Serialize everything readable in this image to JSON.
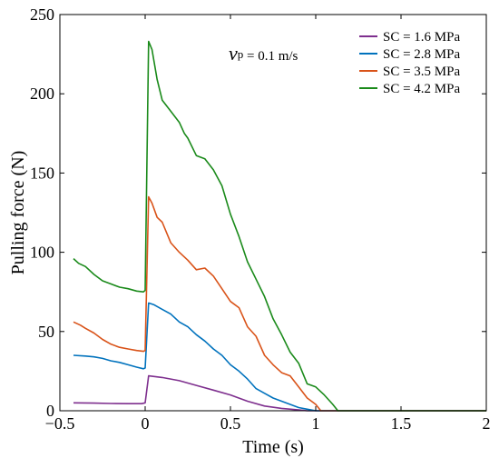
{
  "chart_data": {
    "type": "line",
    "title": "",
    "xlabel": "Time (s)",
    "ylabel": "Pulling force (N)",
    "xlim": [
      -0.5,
      2
    ],
    "ylim": [
      0,
      250
    ],
    "xticks": [
      -0.5,
      0,
      0.5,
      1,
      1.5,
      2
    ],
    "xtick_labels": [
      "−0.5",
      "0",
      "0.5",
      "1",
      "1.5",
      "2"
    ],
    "yticks": [
      0,
      50,
      100,
      150,
      200,
      250
    ],
    "ytick_labels": [
      "0",
      "50",
      "100",
      "150",
      "200",
      "250"
    ],
    "grid": false,
    "legend_position": "top-right",
    "annotation": {
      "symbol": "v",
      "subscript": "p",
      "text": " = 0.1 m/s"
    },
    "series": [
      {
        "name": "SC = 1.6 MPa",
        "color": "#7E2F8E",
        "x": [
          -0.42,
          -0.3,
          -0.2,
          -0.1,
          -0.02,
          0.0,
          0.02,
          0.1,
          0.2,
          0.3,
          0.4,
          0.5,
          0.6,
          0.7,
          0.8,
          0.9,
          0.95,
          2.0
        ],
        "y": [
          5,
          4.8,
          4.6,
          4.5,
          4.5,
          5,
          22,
          21,
          19,
          16,
          13,
          10,
          6,
          3,
          1.5,
          0.5,
          0,
          0
        ]
      },
      {
        "name": "SC = 2.8 MPa",
        "color": "#0072BD",
        "x": [
          -0.42,
          -0.35,
          -0.3,
          -0.25,
          -0.2,
          -0.15,
          -0.1,
          -0.05,
          -0.01,
          0.0,
          0.02,
          0.05,
          0.1,
          0.15,
          0.2,
          0.25,
          0.3,
          0.35,
          0.4,
          0.45,
          0.5,
          0.55,
          0.6,
          0.65,
          0.7,
          0.75,
          0.8,
          0.85,
          0.9,
          0.95,
          1.0,
          2.0
        ],
        "y": [
          35,
          34.5,
          34,
          33,
          31.5,
          30.5,
          29,
          27.5,
          26.5,
          27,
          68,
          67,
          64,
          61,
          56,
          53,
          48,
          44,
          39,
          35,
          29,
          25,
          20,
          14,
          11,
          8,
          6,
          4,
          2,
          1,
          0,
          0
        ]
      },
      {
        "name": "SC = 3.5 MPa",
        "color": "#D95319",
        "x": [
          -0.42,
          -0.38,
          -0.35,
          -0.3,
          -0.25,
          -0.2,
          -0.15,
          -0.1,
          -0.05,
          -0.01,
          0.0,
          0.02,
          0.04,
          0.07,
          0.1,
          0.15,
          0.2,
          0.25,
          0.3,
          0.35,
          0.4,
          0.45,
          0.5,
          0.55,
          0.6,
          0.65,
          0.7,
          0.75,
          0.8,
          0.85,
          0.9,
          0.95,
          1.0,
          1.03,
          2.0
        ],
        "y": [
          56,
          54,
          52,
          49,
          45,
          42,
          40,
          39,
          38,
          37.5,
          38,
          135,
          131,
          122,
          119,
          106,
          100,
          95,
          89,
          90,
          85,
          77,
          69,
          65,
          53,
          47,
          35,
          29,
          24,
          22,
          15,
          8,
          4,
          0,
          0
        ]
      },
      {
        "name": "SC = 4.2 MPa",
        "color": "#1A8A1A",
        "x": [
          -0.42,
          -0.39,
          -0.35,
          -0.3,
          -0.25,
          -0.2,
          -0.15,
          -0.1,
          -0.05,
          -0.01,
          0.0,
          0.02,
          0.04,
          0.07,
          0.1,
          0.15,
          0.2,
          0.23,
          0.25,
          0.3,
          0.35,
          0.4,
          0.45,
          0.5,
          0.55,
          0.6,
          0.65,
          0.7,
          0.75,
          0.8,
          0.85,
          0.9,
          0.95,
          1.0,
          1.05,
          1.1,
          1.13,
          2.0
        ],
        "y": [
          96,
          93,
          91,
          86,
          82,
          80,
          78,
          77,
          75.5,
          75,
          76,
          233,
          228,
          209,
          196,
          189,
          182,
          175,
          172,
          161,
          159,
          152,
          142,
          124,
          110,
          94,
          83,
          72,
          58,
          48,
          37,
          30,
          17,
          15,
          10,
          4,
          0,
          0
        ]
      }
    ]
  }
}
